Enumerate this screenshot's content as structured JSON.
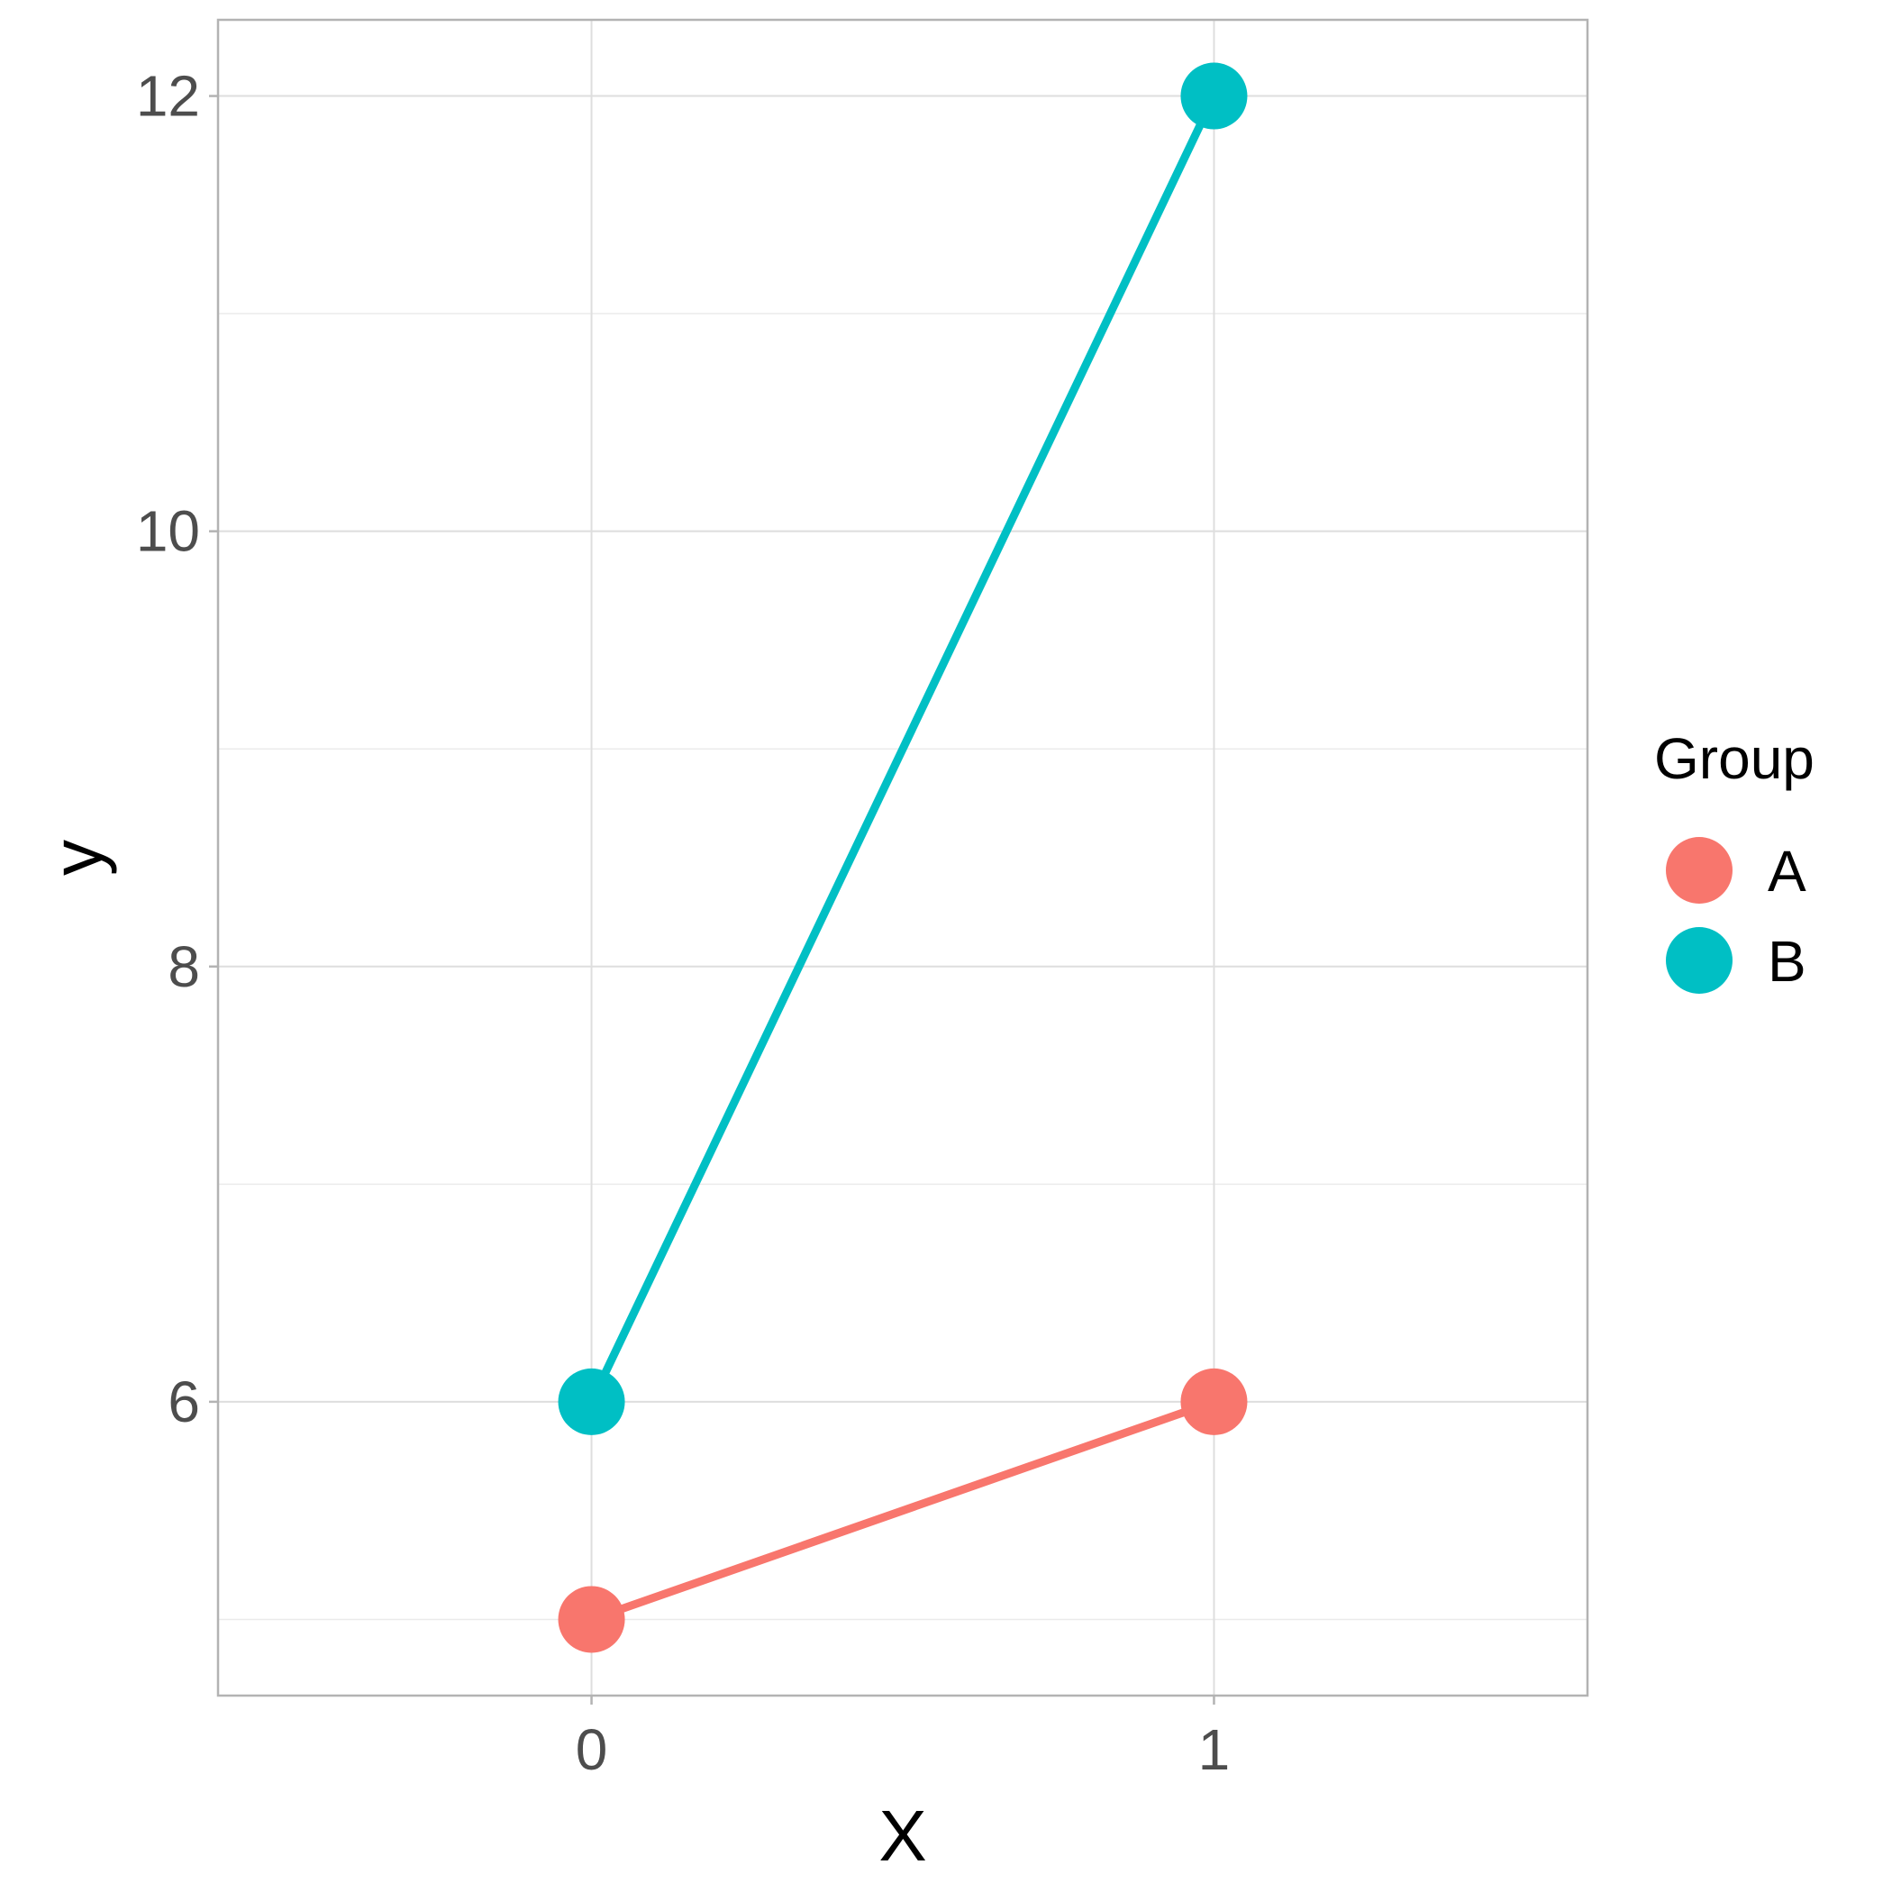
{
  "chart_data": {
    "type": "line",
    "xlabel": "X",
    "ylabel": "y",
    "x": [
      0,
      1
    ],
    "x_ticks": [
      "0",
      "1"
    ],
    "xlim": [
      -0.6,
      1.6
    ],
    "y_ticks": [
      "6",
      "8",
      "10",
      "12"
    ],
    "ylim": [
      4.65,
      12.35
    ],
    "grid": true,
    "legend": {
      "title": "Group",
      "placement": "right"
    },
    "series": [
      {
        "name": "A",
        "color": "#F8766D",
        "values": [
          5,
          6
        ]
      },
      {
        "name": "B",
        "color": "#00BFC4",
        "values": [
          6,
          12
        ]
      }
    ]
  }
}
